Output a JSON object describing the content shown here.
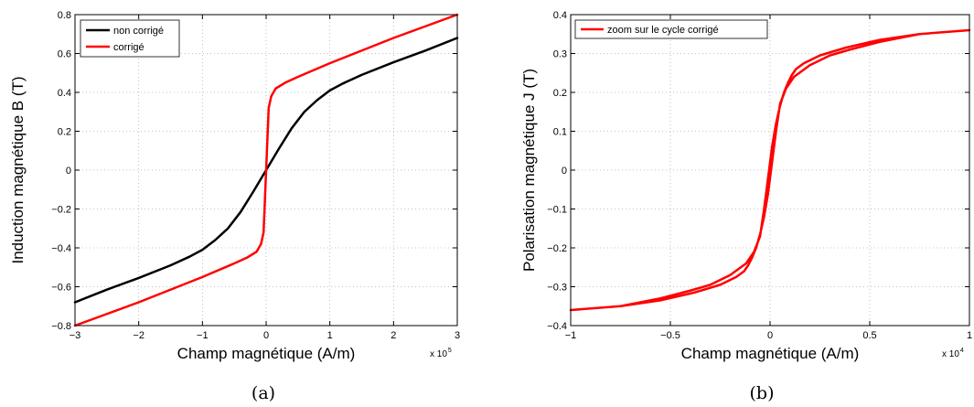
{
  "chart_data": [
    {
      "type": "line",
      "caption": "(a)",
      "xlabel": "Champ magnétique (A/m)",
      "ylabel": "Induction magnétique B (T)",
      "xlim": [
        -3,
        3
      ],
      "ylim": [
        -0.8,
        0.8
      ],
      "x_multiplier": "x 10",
      "x_multiplier_exp": "5",
      "xticks": [
        "−3",
        "−2",
        "−1",
        "0",
        "1",
        "2",
        "3"
      ],
      "yticks": [
        "−0.8",
        "−0.6",
        "−0.4",
        "−0.2",
        "0",
        "0.2",
        "0.4",
        "0.6",
        "0.8"
      ],
      "grid": true,
      "legend_position": "top-left",
      "series": [
        {
          "name": "non corrigé",
          "color": "#000000",
          "x": [
            -3,
            -2.5,
            -2,
            -1.5,
            -1.2,
            -1,
            -0.8,
            -0.6,
            -0.4,
            -0.2,
            0,
            0.2,
            0.4,
            0.6,
            0.8,
            1,
            1.2,
            1.5,
            2,
            2.5,
            3
          ],
          "y": [
            -0.68,
            -0.615,
            -0.555,
            -0.49,
            -0.445,
            -0.41,
            -0.36,
            -0.3,
            -0.215,
            -0.11,
            0,
            0.11,
            0.215,
            0.3,
            0.36,
            0.41,
            0.445,
            0.49,
            0.555,
            0.615,
            0.68
          ]
        },
        {
          "name": "corrigé",
          "color": "#ff0000",
          "x": [
            -3,
            -2,
            -1,
            -0.5,
            -0.3,
            -0.15,
            -0.08,
            -0.04,
            0,
            0.04,
            0.08,
            0.15,
            0.3,
            0.5,
            1,
            2,
            3
          ],
          "y": [
            -0.8,
            -0.68,
            -0.55,
            -0.48,
            -0.45,
            -0.42,
            -0.38,
            -0.32,
            0,
            0.32,
            0.38,
            0.42,
            0.45,
            0.48,
            0.55,
            0.68,
            0.8
          ]
        }
      ]
    },
    {
      "type": "line",
      "caption": "(b)",
      "xlabel": "Champ magnétique (A/m)",
      "ylabel": "Polarisation magnétique J (T)",
      "xlim": [
        -1,
        1
      ],
      "ylim": [
        -0.4,
        0.4
      ],
      "x_multiplier": "x 10",
      "x_multiplier_exp": "4",
      "xticks": [
        "−1",
        "−0.5",
        "0",
        "0.5",
        "1"
      ],
      "yticks": [
        "−0.4",
        "−0.3",
        "−0.2",
        "−0.1",
        "0",
        "0.1",
        "0.2",
        "0.3",
        "0.4"
      ],
      "grid": true,
      "legend_position": "top-left",
      "series": [
        {
          "name": "zoom sur le cycle corrigé",
          "color": "#ff0000",
          "x": [
            1,
            0.75,
            0.55,
            0.4,
            0.3,
            0.2,
            0.12,
            0.08,
            0.05,
            0.03,
            0.01,
            -0.01,
            -0.03,
            -0.05,
            -0.07,
            -0.09,
            -0.11,
            -0.13,
            -0.17,
            -0.25,
            -0.38,
            -0.55,
            -0.75,
            -1,
            -0.75,
            -0.55,
            -0.4,
            -0.3,
            -0.2,
            -0.12,
            -0.08,
            -0.05,
            -0.03,
            -0.01,
            0.01,
            0.03,
            0.05,
            0.07,
            0.09,
            0.11,
            0.13,
            0.17,
            0.25,
            0.38,
            0.55,
            0.75,
            1
          ],
          "y": [
            0.36,
            0.35,
            0.33,
            0.31,
            0.295,
            0.27,
            0.24,
            0.21,
            0.17,
            0.1,
            0.02,
            -0.06,
            -0.12,
            -0.165,
            -0.2,
            -0.225,
            -0.245,
            -0.26,
            -0.275,
            -0.295,
            -0.315,
            -0.335,
            -0.35,
            -0.36,
            -0.35,
            -0.33,
            -0.31,
            -0.295,
            -0.27,
            -0.24,
            -0.21,
            -0.17,
            -0.1,
            -0.02,
            0.06,
            0.12,
            0.165,
            0.2,
            0.225,
            0.245,
            0.26,
            0.275,
            0.295,
            0.315,
            0.335,
            0.35,
            0.36
          ]
        }
      ]
    }
  ]
}
